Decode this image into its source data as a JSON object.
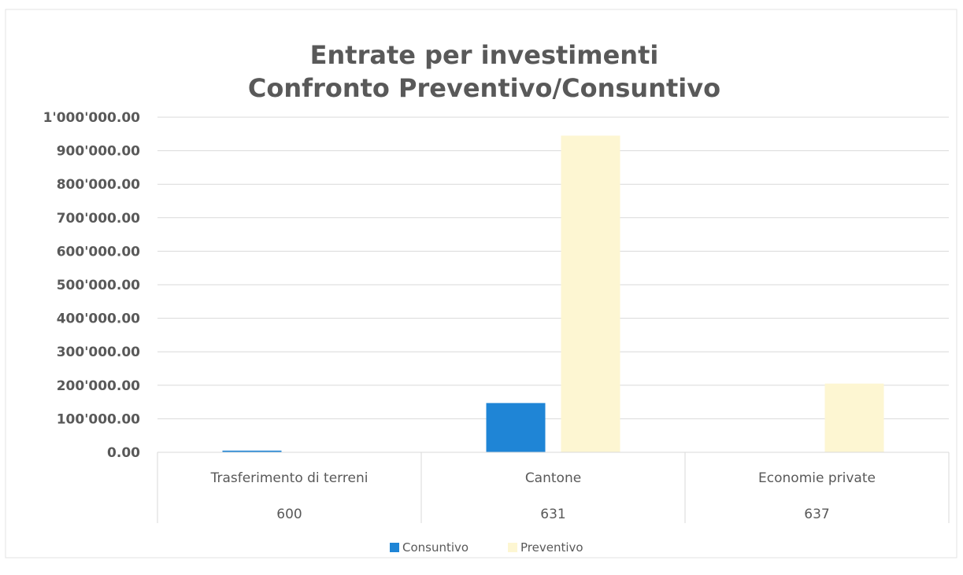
{
  "chart_data": {
    "type": "bar",
    "title": [
      "Entrate per investimenti",
      "Confronto Preventivo/Consuntivo"
    ],
    "categories": [
      {
        "label": "Trasferimento di terreni",
        "code": "600"
      },
      {
        "label": "Cantone",
        "code": "631"
      },
      {
        "label": "Economie private",
        "code": "637"
      }
    ],
    "series": [
      {
        "name": "Consuntivo",
        "color": "#1f85d6",
        "values": [
          5000,
          147000,
          0
        ]
      },
      {
        "name": "Preventivo",
        "color": "#fdf6d2",
        "values": [
          0,
          945000,
          205000
        ]
      }
    ],
    "ylim": [
      0,
      1000000
    ],
    "yticks": [
      {
        "value": 0,
        "label": "0.00"
      },
      {
        "value": 100000,
        "label": "100'000.00"
      },
      {
        "value": 200000,
        "label": "200'000.00"
      },
      {
        "value": 300000,
        "label": "300'000.00"
      },
      {
        "value": 400000,
        "label": "400'000.00"
      },
      {
        "value": 500000,
        "label": "500'000.00"
      },
      {
        "value": 600000,
        "label": "600'000.00"
      },
      {
        "value": 700000,
        "label": "700'000.00"
      },
      {
        "value": 800000,
        "label": "800'000.00"
      },
      {
        "value": 900000,
        "label": "900'000.00"
      },
      {
        "value": 1000000,
        "label": "1'000'000.00"
      }
    ],
    "grid": true,
    "legend_position": "bottom"
  }
}
